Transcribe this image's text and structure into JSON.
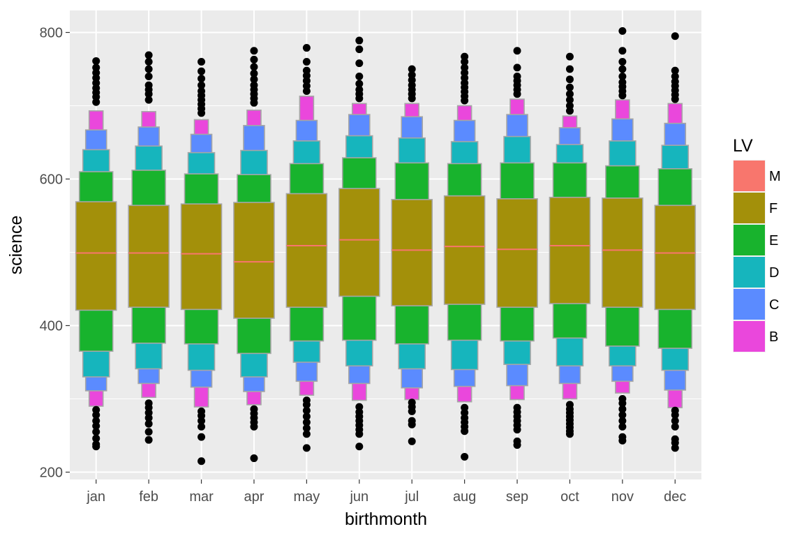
{
  "chart_data": {
    "type": "letter-value-plot",
    "xlabel": "birthmonth",
    "ylabel": "science",
    "ylim": [
      190,
      830
    ],
    "y_ticks": [
      200,
      400,
      600,
      800
    ],
    "categories": [
      "jan",
      "feb",
      "mar",
      "apr",
      "may",
      "jun",
      "jul",
      "aug",
      "sep",
      "oct",
      "nov",
      "dec"
    ],
    "legend": {
      "title": "LV",
      "position": "right",
      "entries": [
        {
          "label": "M",
          "color": "#F8766D"
        },
        {
          "label": "F",
          "color": "#A3900A"
        },
        {
          "label": "E",
          "color": "#18B32D"
        },
        {
          "label": "D",
          "color": "#16B5BD"
        },
        {
          "label": "C",
          "color": "#5B8BFF"
        },
        {
          "label": "B",
          "color": "#EA47DC"
        }
      ]
    },
    "background_color": "#EBEBEB",
    "grid": true,
    "box_outline_color": "#A6A6A6",
    "outlier_color": "#000000",
    "groups": [
      {
        "name": "jan",
        "median": 499,
        "F": [
          421,
          569
        ],
        "E": [
          365,
          610
        ],
        "D": [
          330,
          640
        ],
        "C": [
          311,
          667
        ],
        "B": [
          290,
          693
        ],
        "outliers": [
          235,
          238,
          246,
          255,
          263,
          270,
          278,
          285,
          705,
          712,
          718,
          724,
          731,
          738,
          745,
          752,
          761
        ]
      },
      {
        "name": "feb",
        "median": 499,
        "F": [
          425,
          564
        ],
        "E": [
          376,
          612
        ],
        "D": [
          341,
          645
        ],
        "C": [
          321,
          671
        ],
        "B": [
          302,
          692
        ],
        "outliers": [
          244,
          255,
          266,
          274,
          281,
          288,
          294,
          708,
          716,
          722,
          728,
          740,
          750,
          760,
          769
        ]
      },
      {
        "name": "mar",
        "median": 498,
        "F": [
          422,
          566
        ],
        "E": [
          375,
          607
        ],
        "D": [
          339,
          636
        ],
        "C": [
          316,
          661
        ],
        "B": [
          289,
          681
        ],
        "outliers": [
          215,
          248,
          262,
          270,
          277,
          283,
          690,
          696,
          702,
          708,
          714,
          720,
          728,
          737,
          747,
          760
        ]
      },
      {
        "name": "apr",
        "median": 487,
        "F": [
          410,
          568
        ],
        "E": [
          362,
          606
        ],
        "D": [
          330,
          639
        ],
        "C": [
          310,
          673
        ],
        "B": [
          292,
          694
        ],
        "outliers": [
          219,
          262,
          268,
          274,
          280,
          286,
          704,
          710,
          716,
          722,
          728,
          736,
          744,
          753,
          763,
          775
        ]
      },
      {
        "name": "may",
        "median": 509,
        "F": [
          425,
          580
        ],
        "E": [
          379,
          621
        ],
        "D": [
          350,
          652
        ],
        "C": [
          324,
          680
        ],
        "B": [
          305,
          713
        ],
        "outliers": [
          233,
          252,
          260,
          268,
          276,
          284,
          292,
          298,
          720,
          727,
          734,
          741,
          748,
          760,
          779
        ]
      },
      {
        "name": "jun",
        "median": 517,
        "F": [
          440,
          587
        ],
        "E": [
          380,
          629
        ],
        "D": [
          345,
          659
        ],
        "C": [
          321,
          688
        ],
        "B": [
          298,
          703
        ],
        "outliers": [
          235,
          252,
          258,
          264,
          270,
          276,
          282,
          289,
          710,
          716,
          722,
          730,
          740,
          758,
          777,
          789
        ]
      },
      {
        "name": "jul",
        "median": 503,
        "F": [
          427,
          572
        ],
        "E": [
          375,
          622
        ],
        "D": [
          341,
          656
        ],
        "C": [
          315,
          685
        ],
        "B": [
          299,
          703
        ],
        "outliers": [
          242,
          265,
          270,
          283,
          289,
          295,
          710,
          716,
          722,
          728,
          735,
          742,
          750
        ]
      },
      {
        "name": "aug",
        "median": 508,
        "F": [
          429,
          577
        ],
        "E": [
          380,
          621
        ],
        "D": [
          340,
          651
        ],
        "C": [
          317,
          680
        ],
        "B": [
          296,
          700
        ],
        "outliers": [
          221,
          256,
          262,
          268,
          274,
          281,
          288,
          707,
          713,
          719,
          725,
          731,
          738,
          745,
          752,
          760,
          767
        ]
      },
      {
        "name": "sep",
        "median": 504,
        "F": [
          425,
          573
        ],
        "E": [
          379,
          622
        ],
        "D": [
          347,
          658
        ],
        "C": [
          318,
          688
        ],
        "B": [
          299,
          709
        ],
        "outliers": [
          237,
          242,
          258,
          264,
          270,
          276,
          282,
          288,
          716,
          722,
          728,
          734,
          740,
          752,
          775
        ]
      },
      {
        "name": "oct",
        "median": 509,
        "F": [
          430,
          575
        ],
        "E": [
          383,
          622
        ],
        "D": [
          345,
          647
        ],
        "C": [
          321,
          670
        ],
        "B": [
          300,
          686
        ],
        "outliers": [
          252,
          256,
          261,
          266,
          271,
          276,
          281,
          286,
          292,
          693,
          700,
          708,
          716,
          725,
          736,
          750,
          767
        ]
      },
      {
        "name": "nov",
        "median": 503,
        "F": [
          425,
          574
        ],
        "E": [
          372,
          618
        ],
        "D": [
          345,
          652
        ],
        "C": [
          324,
          682
        ],
        "B": [
          308,
          708
        ],
        "outliers": [
          243,
          248,
          262,
          270,
          278,
          286,
          294,
          300,
          714,
          720,
          726,
          732,
          740,
          750,
          760,
          775,
          802
        ]
      },
      {
        "name": "dec",
        "median": 499,
        "F": [
          422,
          564
        ],
        "E": [
          369,
          614
        ],
        "D": [
          339,
          646
        ],
        "C": [
          312,
          676
        ],
        "B": [
          288,
          703
        ],
        "outliers": [
          233,
          240,
          245,
          262,
          270,
          278,
          284,
          709,
          715,
          721,
          727,
          733,
          740,
          748,
          795
        ]
      }
    ]
  }
}
